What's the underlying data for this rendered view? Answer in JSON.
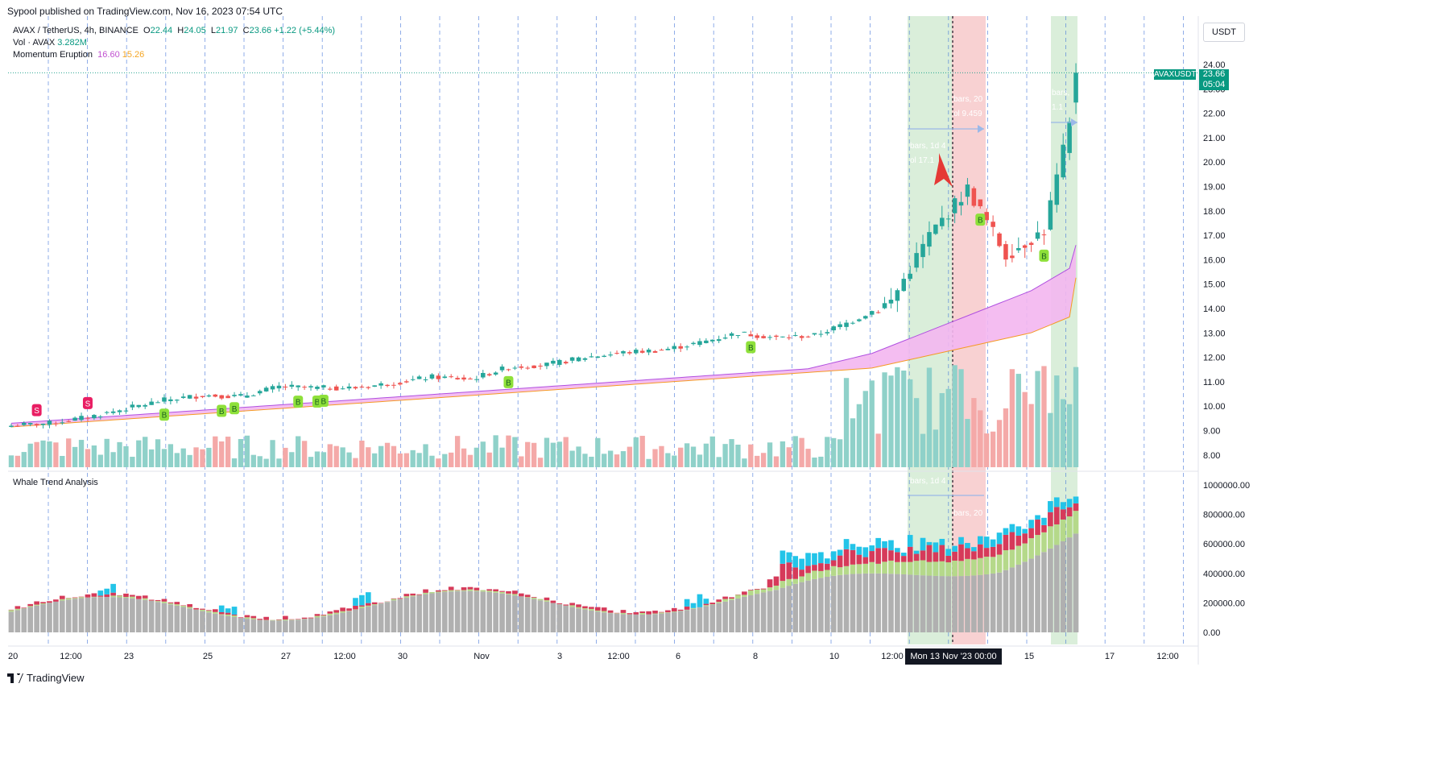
{
  "publisher_line": "Sypool published on TradingView.com, Nov 16, 2023 07:54 UTC",
  "legend": {
    "symbol": "AVAX / TetherUS, 4h, BINANCE",
    "o_label": "O",
    "o_value": "22.44",
    "h_label": "H",
    "h_value": "24.05",
    "l_label": "L",
    "l_value": "21.97",
    "c_label": "C",
    "c_value": "23.66",
    "change": "+1.22 (+5.44%)",
    "vol_label": "Vol · AVAX",
    "vol_value": "3.282M",
    "indicator_label": "Momentum Eruption",
    "indicator_v1": "16.60",
    "indicator_v2": "15.26"
  },
  "lower_pane_title": "Whale Trend Analysis",
  "price_axis": {
    "unit": "USDT",
    "ticks": [
      "24.00",
      "23.00",
      "22.00",
      "21.00",
      "20.00",
      "19.00",
      "18.00",
      "17.00",
      "16.00",
      "15.00",
      "14.00",
      "13.00",
      "12.00",
      "11.00",
      "10.00",
      "9.00",
      "8.00"
    ],
    "symbol_tag": "AVAXUSDT",
    "last_price": "23.66",
    "countdown": "05:04"
  },
  "lower_axis": {
    "ticks": [
      "1000000.00",
      "800000.00",
      "600000.00",
      "400000.00",
      "200000.00",
      "0.00"
    ]
  },
  "time_axis": {
    "ticks": [
      "20",
      "12:00",
      "23",
      "25",
      "27",
      "12:00",
      "30",
      "Nov",
      "3",
      "12:00",
      "6",
      "8",
      "10",
      "12:00",
      "15",
      "17",
      "12:00"
    ],
    "cursor_label": "Mon 13 Nov '23   00:00"
  },
  "signals": {
    "buy": "B",
    "sell": "S"
  },
  "annotations": {
    "green_box_1": [
      "bars, 1d 4",
      "ol 17.1"
    ],
    "red_box": [
      "bars, 20",
      "ol 9.459"
    ],
    "green_box_2": [
      "bars,",
      "1.1"
    ],
    "lower_green": "bars, 1d 4",
    "lower_red": "bars, 20"
  },
  "footer": {
    "brand": "TradingView"
  },
  "colors": {
    "up": "#26a69a",
    "down": "#ef5350",
    "band_fill": "#f3b6f0",
    "band_line": "#b050e0",
    "ema_line": "#f59a23",
    "buy_badge": "#8ee03a",
    "sell_badge": "#e91e63",
    "whale_grey": "#b0b0b0",
    "whale_green": "#b5d98a",
    "whale_red": "#d63a5a",
    "whale_cyan": "#23c4e8"
  },
  "chart_data": {
    "type": "candlestick",
    "interval": "4h",
    "x_range": [
      "2023-10-19",
      "2023-11-16"
    ],
    "ylim": [
      7.6,
      24.6
    ],
    "price_anchors": [
      {
        "x": "Oct 19",
        "close": 9.2
      },
      {
        "x": "Oct 20",
        "close": 9.3
      },
      {
        "x": "Oct 21",
        "close": 9.55
      },
      {
        "x": "Oct 22",
        "close": 9.9
      },
      {
        "x": "Oct 23",
        "close": 10.25
      },
      {
        "x": "Oct 24",
        "close": 10.45
      },
      {
        "x": "Oct 25",
        "close": 10.4
      },
      {
        "x": "Oct 26",
        "close": 10.8
      },
      {
        "x": "Oct 27",
        "close": 10.75
      },
      {
        "x": "Oct 28",
        "close": 10.75
      },
      {
        "x": "Oct 29",
        "close": 10.95
      },
      {
        "x": "Oct 30",
        "close": 11.2
      },
      {
        "x": "Oct 31",
        "close": 11.1
      },
      {
        "x": "Nov 1",
        "close": 11.6
      },
      {
        "x": "Nov 2",
        "close": 11.7
      },
      {
        "x": "Nov 3",
        "close": 12.0
      },
      {
        "x": "Nov 4",
        "close": 12.2
      },
      {
        "x": "Nov 5",
        "close": 12.3
      },
      {
        "x": "Nov 6",
        "close": 12.6
      },
      {
        "x": "Nov 7",
        "close": 13.0
      },
      {
        "x": "Nov 8",
        "close": 12.8
      },
      {
        "x": "Nov 9",
        "close": 12.9
      },
      {
        "x": "Nov 10",
        "close": 13.5
      },
      {
        "x": "Nov 11",
        "close": 14.3
      },
      {
        "x": "Nov 12",
        "close": 17.0
      },
      {
        "x": "Nov 13",
        "close": 18.9
      },
      {
        "x": "Nov 14",
        "close": 16.2
      },
      {
        "x": "Nov 15",
        "close": 17.2
      },
      {
        "x": "Nov 16",
        "close": 23.66
      }
    ],
    "last_bar": {
      "open": 22.44,
      "high": 24.05,
      "low": 21.97,
      "close": 23.66,
      "volume": "3.282M"
    },
    "momentum_eruption": {
      "upper": 16.6,
      "lower": 15.26
    },
    "whale_trend_ylim": [
      0,
      1000000
    ],
    "series": [
      {
        "name": "AVAX / TetherUS",
        "kind": "candles"
      },
      {
        "name": "Vol · AVAX",
        "kind": "volume"
      },
      {
        "name": "Momentum Eruption",
        "kind": "band"
      },
      {
        "name": "Whale Trend Analysis",
        "kind": "stacked-bars"
      }
    ]
  }
}
